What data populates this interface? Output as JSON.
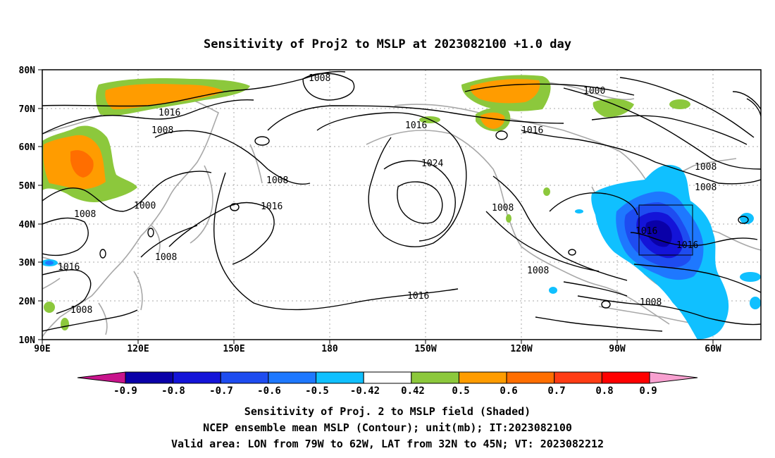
{
  "title": "Sensitivity of Proj2 to MSLP at 2023082100 +1.0 day",
  "map": {
    "lon_labels": [
      "90E",
      "120E",
      "150E",
      "180",
      "150W",
      "120W",
      "90W",
      "60W"
    ],
    "lat_labels": [
      "80N",
      "70N",
      "60N",
      "50N",
      "40N",
      "30N",
      "20N",
      "10N"
    ],
    "isobar_labels": [
      {
        "text": "1008"
      },
      {
        "text": "1016"
      },
      {
        "text": "1008"
      },
      {
        "text": "1008"
      },
      {
        "text": "1016"
      },
      {
        "text": "1024"
      },
      {
        "text": "1016"
      },
      {
        "text": "1000"
      },
      {
        "text": "1008"
      },
      {
        "text": "1000"
      },
      {
        "text": "1008"
      },
      {
        "text": "1008"
      },
      {
        "text": "1016"
      },
      {
        "text": "1008"
      },
      {
        "text": "1016"
      },
      {
        "text": "1008"
      },
      {
        "text": "1008"
      },
      {
        "text": "1016"
      },
      {
        "text": "1016"
      },
      {
        "text": "1008"
      },
      {
        "text": "1008"
      },
      {
        "text": "1016"
      }
    ]
  },
  "colorbar": {
    "labels": [
      "-0.9",
      "-0.8",
      "-0.7",
      "-0.6",
      "-0.5",
      "-0.42",
      "0.42",
      "0.5",
      "0.6",
      "0.7",
      "0.8",
      "0.9"
    ],
    "colors": [
      "#0a00a8",
      "#1414d8",
      "#1e4cf0",
      "#1e78ff",
      "#10c0ff",
      "#ffffff",
      "#8cc83c",
      "#ff9c00",
      "#ff6e00",
      "#ff3c14",
      "#ff0000"
    ],
    "below_color": "#c8148c",
    "above_color": "#f8a0d0"
  },
  "captions": [
    "Sensitivity of Proj. 2 to MSLP field (Shaded)",
    "NCEP ensemble mean MSLP (Contour); unit(mb); IT:2023082100",
    "Valid area: LON from 79W to 62W, LAT from 32N to 45N; VT: 2023082212"
  ]
}
